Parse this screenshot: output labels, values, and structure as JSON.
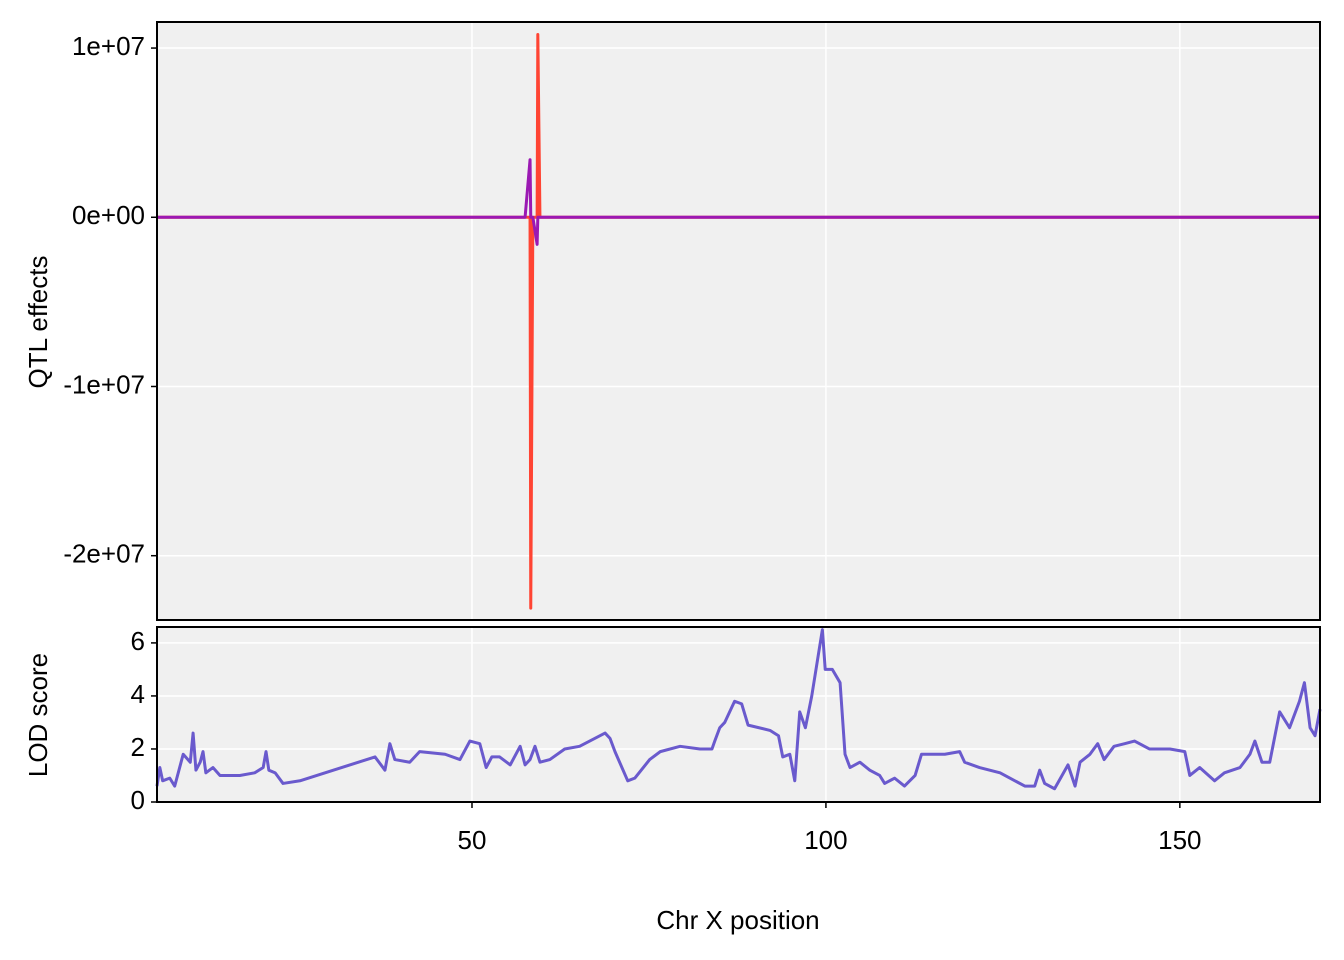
{
  "chart_data": [
    {
      "type": "line",
      "ylabel": "QTL effects",
      "x": [
        5.5,
        57.5,
        58.2,
        58.3,
        58.6,
        59.2,
        59.3,
        59.6,
        169.8
      ],
      "series": [
        {
          "color": "#ff4433",
          "values": [
            0,
            0,
            0,
            -23100000,
            0,
            0,
            10800000,
            0,
            0
          ]
        },
        {
          "color": "#9b19b3",
          "values": [
            0,
            0,
            3400000,
            0,
            0,
            -1600000,
            0,
            0,
            0
          ]
        }
      ],
      "xlim": [
        5.5,
        169.8
      ],
      "xticks": [
        50,
        100,
        150
      ],
      "ylim": [
        -23800000,
        11540000
      ],
      "yticks": [
        {
          "value": 10000000,
          "label": "1e+07"
        },
        {
          "value": 0,
          "label": "0e+00"
        },
        {
          "value": -10000000,
          "label": "-1e+07"
        },
        {
          "value": -20000000,
          "label": "-2e+07"
        }
      ],
      "grid": true
    },
    {
      "type": "line",
      "ylabel": "LOD score",
      "xlabel": "Chr X position",
      "x": [
        5.5,
        5.9,
        6.3,
        7.3,
        8.0,
        9.2,
        10.2,
        10.6,
        11.0,
        11.6,
        12.0,
        12.4,
        13.4,
        14.4,
        17.2,
        19.3,
        20.5,
        20.9,
        21.3,
        22.2,
        23.3,
        25.7,
        36.3,
        37.7,
        38.4,
        39.1,
        41.2,
        42.6,
        46.2,
        48.3,
        49.7,
        51.1,
        52.0,
        52.8,
        53.9,
        55.4,
        56.8,
        57.5,
        58.2,
        58.9,
        59.6,
        61.0,
        63.1,
        65.2,
        68.8,
        69.5,
        70.2,
        72.0,
        73.0,
        75.1,
        76.6,
        79.4,
        82.2,
        83.9,
        84.3,
        85.0,
        85.7,
        87.1,
        88.1,
        89.0,
        92.1,
        93.3,
        93.9,
        94.9,
        95.6,
        96.3,
        97.1,
        98.0,
        98.9,
        99.5,
        99.9,
        100.9,
        102.0,
        102.7,
        103.4,
        104.8,
        106.2,
        107.6,
        108.3,
        109.7,
        111.1,
        112.6,
        113.5,
        116.8,
        118.9,
        119.6,
        121.7,
        124.6,
        128.1,
        129.5,
        130.2,
        130.9,
        132.3,
        134.2,
        135.2,
        135.9,
        137.3,
        138.4,
        139.3,
        140.7,
        142.2,
        143.6,
        145.7,
        148.6,
        150.7,
        151.4,
        152.8,
        154.9,
        156.3,
        158.5,
        159.9,
        160.6,
        161.6,
        162.7,
        164.1,
        165.5,
        166.9,
        167.6,
        168.4,
        169.1,
        169.8
      ],
      "series": [
        {
          "color": "#6a5acd",
          "values": [
            0.6,
            1.3,
            0.8,
            0.9,
            0.6,
            1.8,
            1.5,
            2.6,
            1.2,
            1.5,
            1.9,
            1.1,
            1.3,
            1.0,
            1.0,
            1.1,
            1.3,
            1.9,
            1.2,
            1.1,
            0.7,
            0.8,
            1.7,
            1.2,
            2.2,
            1.6,
            1.5,
            1.9,
            1.8,
            1.6,
            2.3,
            2.2,
            1.3,
            1.7,
            1.7,
            1.4,
            2.1,
            1.4,
            1.6,
            2.1,
            1.5,
            1.6,
            2.0,
            2.1,
            2.6,
            2.4,
            1.9,
            0.8,
            0.9,
            1.6,
            1.9,
            2.1,
            2.0,
            2.0,
            2.3,
            2.8,
            3.0,
            3.8,
            3.7,
            2.9,
            2.7,
            2.5,
            1.7,
            1.8,
            0.8,
            3.4,
            2.8,
            4.0,
            5.5,
            6.5,
            5.0,
            5.0,
            4.5,
            1.8,
            1.3,
            1.5,
            1.2,
            1.0,
            0.7,
            0.9,
            0.6,
            1.0,
            1.8,
            1.8,
            1.9,
            1.5,
            1.3,
            1.1,
            0.6,
            0.6,
            1.2,
            0.7,
            0.5,
            1.4,
            0.6,
            1.5,
            1.8,
            2.2,
            1.6,
            2.1,
            2.2,
            2.3,
            2.0,
            2.0,
            1.9,
            1.0,
            1.3,
            0.8,
            1.1,
            1.3,
            1.8,
            2.3,
            1.5,
            1.5,
            3.4,
            2.8,
            3.8,
            4.5,
            2.8,
            2.5,
            3.5
          ]
        }
      ],
      "xlim": [
        5.5,
        169.8
      ],
      "xticks": [
        50,
        100,
        150
      ],
      "ylim": [
        0,
        6.6
      ],
      "yticks": [
        0,
        2,
        4,
        6
      ],
      "grid": true
    }
  ]
}
